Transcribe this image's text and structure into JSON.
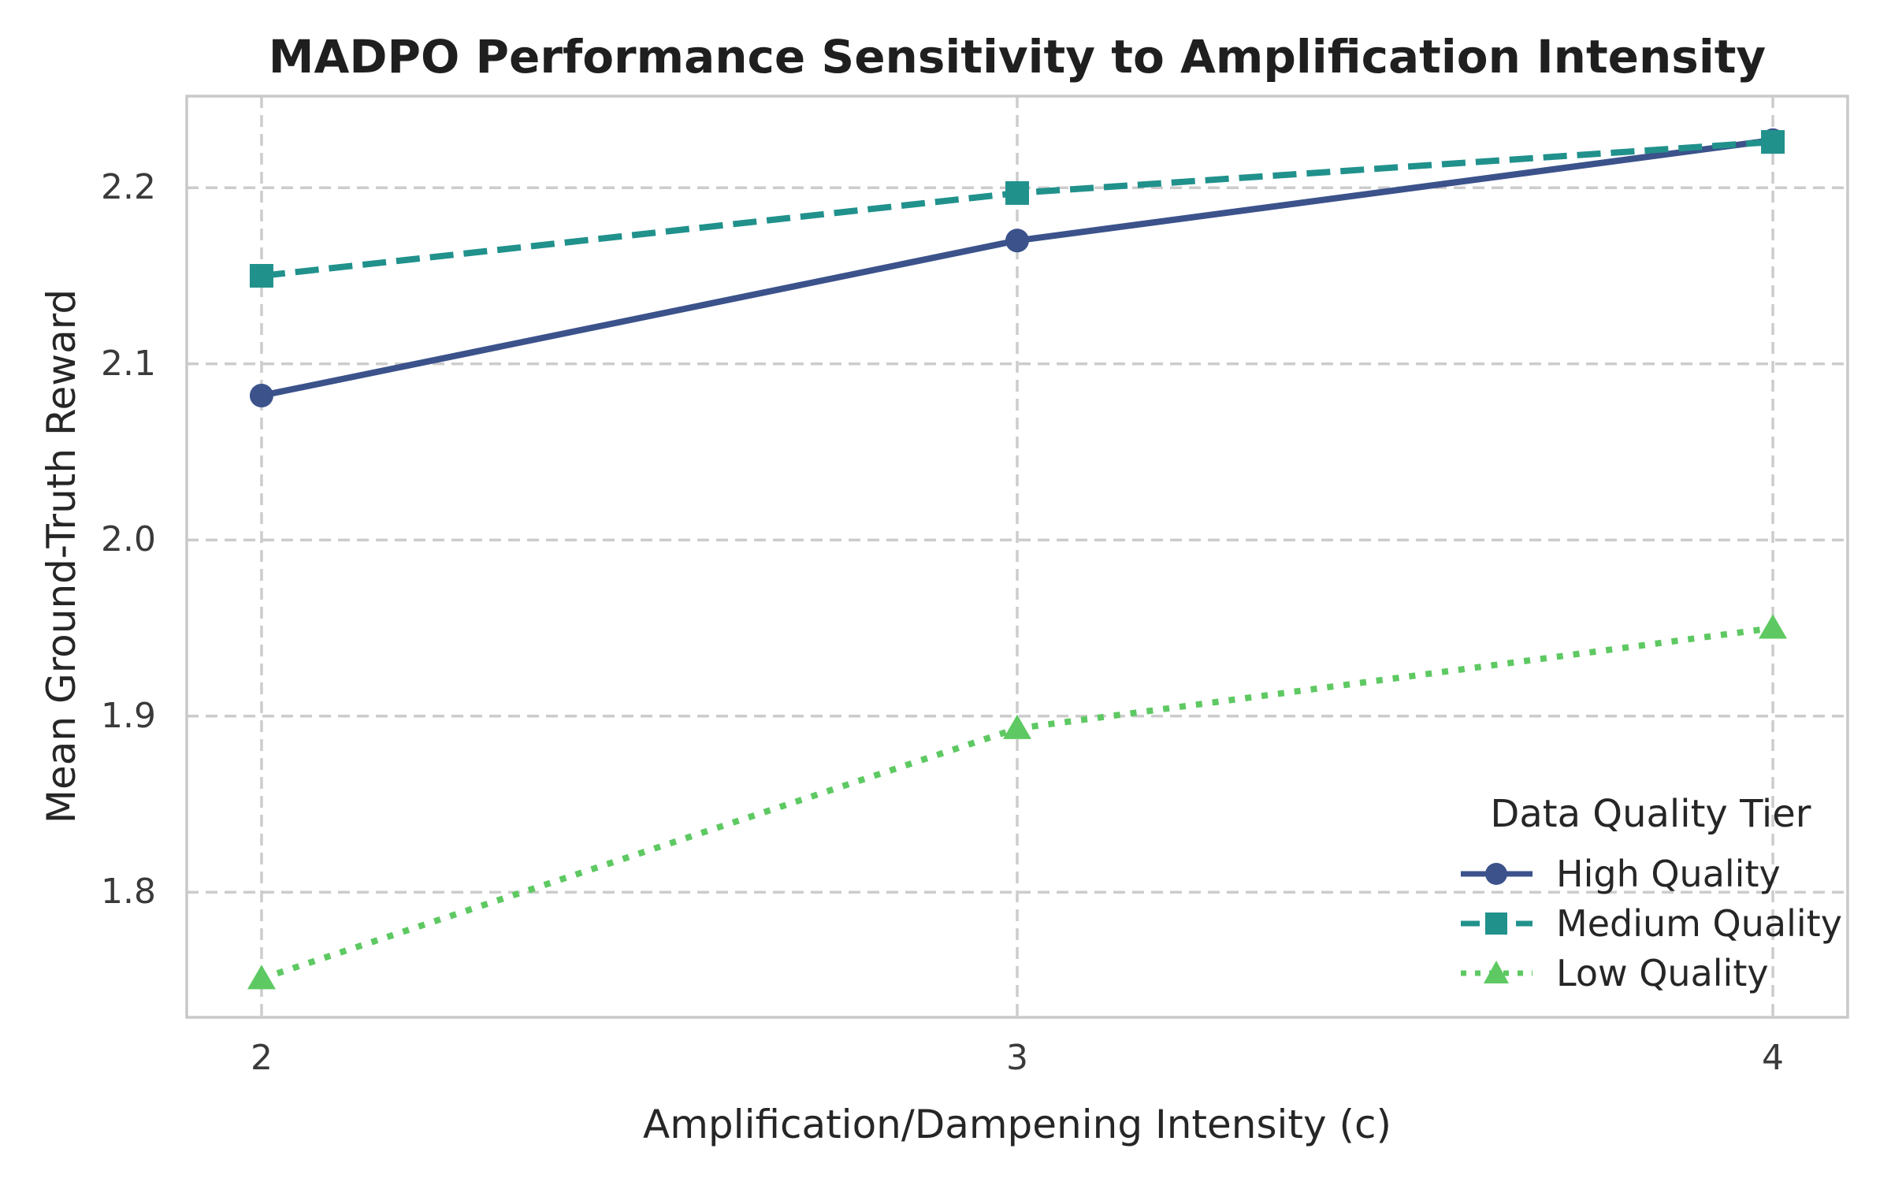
{
  "title": "MADPO Performance Sensitivity to Amplification Intensity",
  "chart_data": {
    "type": "line",
    "x": [
      2,
      3,
      4
    ],
    "series": [
      {
        "name": "High Quality",
        "color": "#3b528b",
        "linestyle": "solid",
        "marker": "circle",
        "values": [
          2.082,
          2.17,
          2.227
        ]
      },
      {
        "name": "Medium Quality",
        "color": "#21918c",
        "linestyle": "dashed",
        "marker": "square",
        "values": [
          2.15,
          2.197,
          2.226
        ]
      },
      {
        "name": "Low Quality",
        "color": "#5ec962",
        "linestyle": "dotted",
        "marker": "triangle",
        "values": [
          1.751,
          1.893,
          1.95
        ]
      }
    ],
    "title": "MADPO Performance Sensitivity to Amplification Intensity",
    "xlabel": "Amplification/Dampening Intensity (c)",
    "ylabel": "Mean Ground-Truth Reward",
    "x_ticks": [
      2,
      3,
      4
    ],
    "y_ticks": [
      1.8,
      1.9,
      2.0,
      2.1,
      2.2
    ],
    "xlim": [
      1.901,
      4.099
    ],
    "ylim": [
      1.729,
      2.252
    ],
    "grid": true,
    "grid_style": "dashed",
    "legend_title": "Data Quality Tier",
    "legend_position": "lower right"
  },
  "colors": {
    "grid": "#cccccc",
    "spine": "#c9c9c9",
    "text": "#262626",
    "tick_text": "#3a3a3a"
  }
}
